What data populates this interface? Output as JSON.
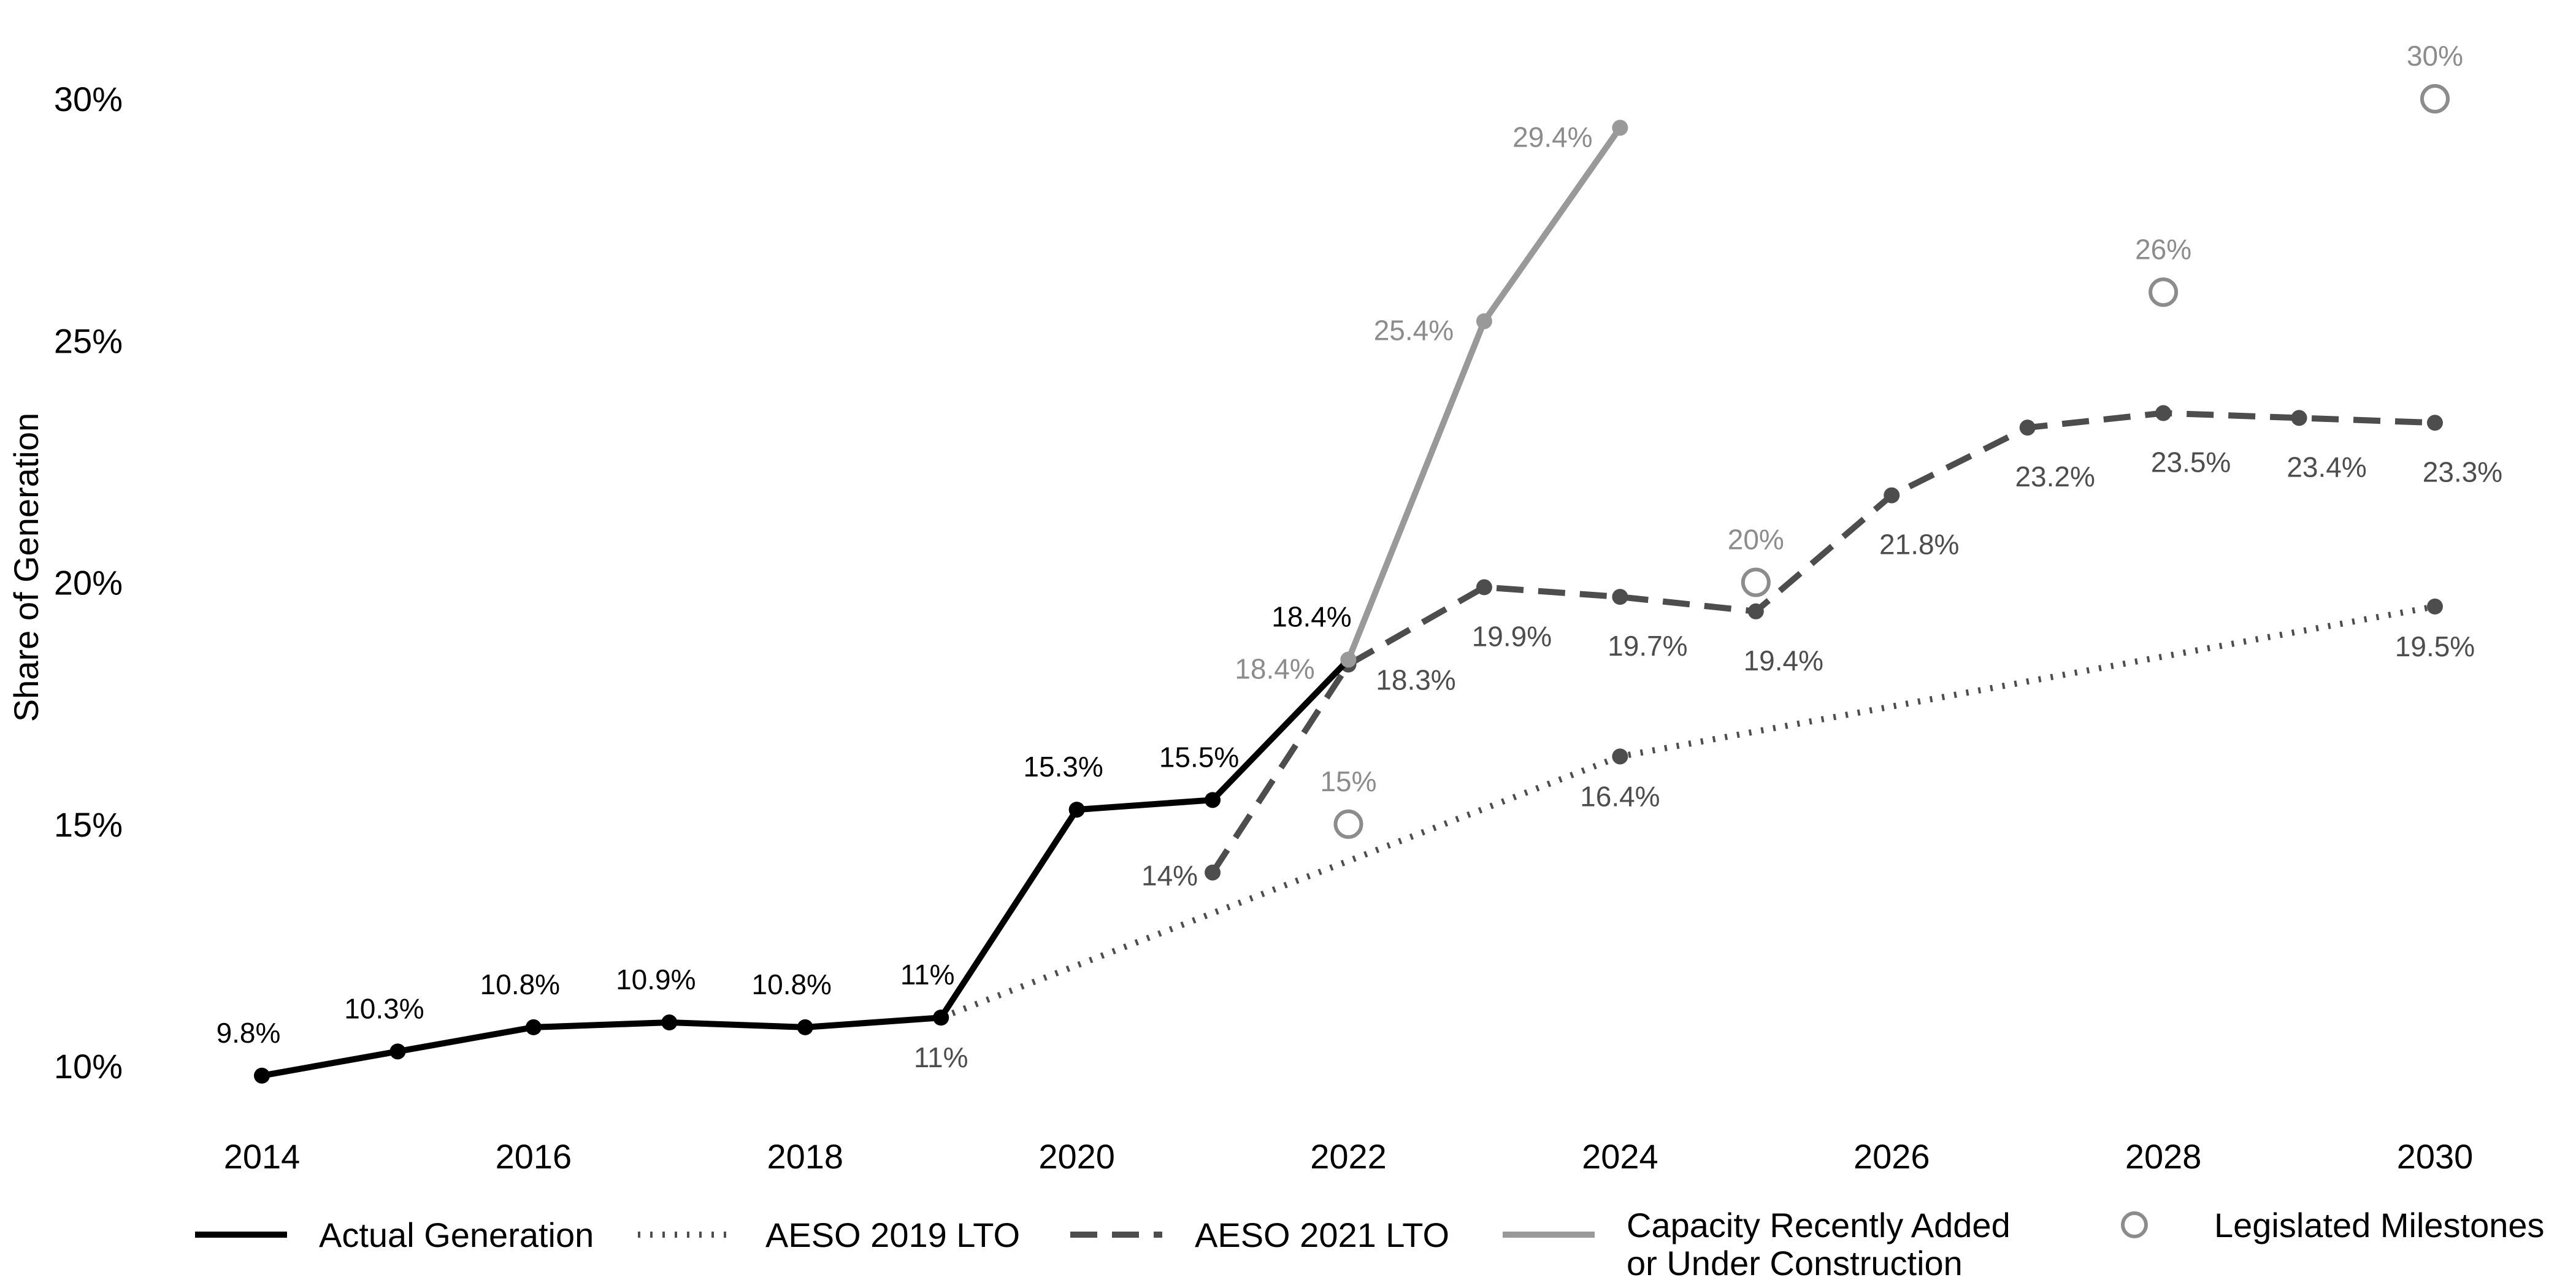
{
  "chart_data": {
    "type": "line",
    "title": "",
    "xlabel": "",
    "ylabel": "Share of Generation",
    "xlim": [
      2014,
      2030
    ],
    "ylim": [
      10,
      30
    ],
    "x_ticks": [
      "2014",
      "2016",
      "2018",
      "2020",
      "2022",
      "2024",
      "2026",
      "2028",
      "2030"
    ],
    "y_ticks": [
      "10%",
      "15%",
      "20%",
      "25%",
      "30%"
    ],
    "grid": false,
    "legend_position": "bottom",
    "series": [
      {
        "name": "Actual Generation",
        "style": "solid",
        "color": "#000000",
        "x": [
          2014,
          2015,
          2016,
          2017,
          2018,
          2019,
          2020,
          2021,
          2022
        ],
        "values": [
          9.8,
          10.3,
          10.8,
          10.9,
          10.8,
          11,
          15.3,
          15.5,
          18.4
        ],
        "labels": [
          "9.8%",
          "10.3%",
          "10.8%",
          "10.9%",
          "10.8%",
          "11%",
          "15.3%",
          "15.5%",
          "18.4%"
        ]
      },
      {
        "name": "AESO 2019 LTO",
        "style": "dotted",
        "color": "#4d4d4d",
        "x": [
          2019,
          2024,
          2030
        ],
        "values": [
          11,
          16.4,
          19.5
        ],
        "labels": [
          "11%",
          "16.4%",
          "19.5%"
        ]
      },
      {
        "name": "AESO 2021 LTO",
        "style": "dashed",
        "color": "#4d4d4d",
        "x": [
          2021,
          2022,
          2023,
          2024,
          2025,
          2026,
          2027,
          2028,
          2029,
          2030
        ],
        "values": [
          14,
          18.3,
          19.9,
          19.7,
          19.4,
          21.8,
          23.2,
          23.5,
          23.4,
          23.3
        ],
        "labels": [
          "14%",
          "18.3%",
          "19.9%",
          "19.7%",
          "19.4%",
          "21.8%",
          "23.2%",
          "23.5%",
          "23.4%",
          "23.3%"
        ]
      },
      {
        "name": "Capacity Recently Added or Under Construction",
        "style": "solid",
        "color": "#999999",
        "x": [
          2022,
          2023,
          2024
        ],
        "values": [
          18.4,
          25.4,
          29.4
        ],
        "labels": [
          "18.4%",
          "25.4%",
          "29.4%"
        ]
      },
      {
        "name": "Legislated Milestones",
        "style": "open-circle",
        "color": "#8c8c8c",
        "x": [
          2022,
          2025,
          2028,
          2030
        ],
        "values": [
          15,
          20,
          26,
          30
        ],
        "labels": [
          "15%",
          "20%",
          "26%",
          "30%"
        ]
      }
    ],
    "legend": [
      {
        "label_lines": [
          "Actual Generation"
        ],
        "style": "solid",
        "color": "#000000"
      },
      {
        "label_lines": [
          "AESO 2019 LTO"
        ],
        "style": "dotted",
        "color": "#4d4d4d"
      },
      {
        "label_lines": [
          "AESO 2021 LTO"
        ],
        "style": "dashed",
        "color": "#4d4d4d"
      },
      {
        "label_lines": [
          "Capacity Recently Added",
          "or Under Construction"
        ],
        "style": "solid",
        "color": "#999999"
      },
      {
        "label_lines": [
          "Legislated Milestones"
        ],
        "style": "open-circle",
        "color": "#8c8c8c"
      }
    ]
  }
}
